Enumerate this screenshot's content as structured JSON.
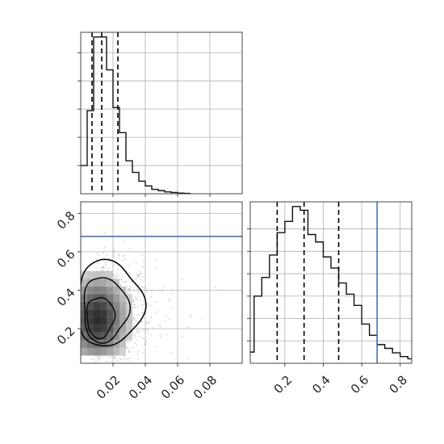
{
  "chart_data": {
    "type": "corner",
    "colors": {
      "truth": "#4477aa",
      "hist": "#111111",
      "quantile": "#000000",
      "scatter": "#9a9a9a"
    },
    "grid": true,
    "parameters": [
      {
        "id": "p1",
        "range": [
          0.0,
          0.1
        ],
        "ticks": [
          0.02,
          0.04,
          0.06,
          0.08
        ],
        "tick_labels": [
          "0.02",
          "0.04",
          "0.06",
          "0.08"
        ],
        "quantiles": [
          0.007,
          0.013,
          0.023
        ],
        "hist": {
          "edges": [
            0.0,
            0.004,
            0.008,
            0.012,
            0.016,
            0.02,
            0.024,
            0.028,
            0.032,
            0.036,
            0.04,
            0.044,
            0.048,
            0.052,
            0.056,
            0.06,
            0.064,
            0.068
          ],
          "counts": [
            90,
            265,
            500,
            500,
            395,
            275,
            195,
            105,
            68,
            40,
            25,
            14,
            10,
            6,
            4,
            2,
            1
          ]
        }
      },
      {
        "id": "p2",
        "range": [
          0.02,
          0.86
        ],
        "ticks": [
          0.2,
          0.4,
          0.6,
          0.8
        ],
        "tick_labels": [
          "0.2",
          "0.4",
          "0.6",
          "0.8"
        ],
        "truth": 0.68,
        "quantiles": [
          0.16,
          0.3,
          0.48
        ],
        "hist": {
          "edges": [
            0.0,
            0.04,
            0.08,
            0.12,
            0.16,
            0.2,
            0.24,
            0.28,
            0.32,
            0.36,
            0.4,
            0.44,
            0.48,
            0.52,
            0.56,
            0.6,
            0.64,
            0.68,
            0.72,
            0.76,
            0.8,
            0.84,
            0.86
          ],
          "counts": [
            30,
            180,
            230,
            290,
            350,
            380,
            420,
            410,
            345,
            325,
            285,
            255,
            215,
            185,
            155,
            105,
            75,
            50,
            40,
            28,
            18,
            12
          ]
        }
      }
    ],
    "joint": {
      "x_param": "p1",
      "y_param": "p2",
      "density_center": [
        0.01,
        0.25
      ],
      "contour_levels": 3
    }
  }
}
